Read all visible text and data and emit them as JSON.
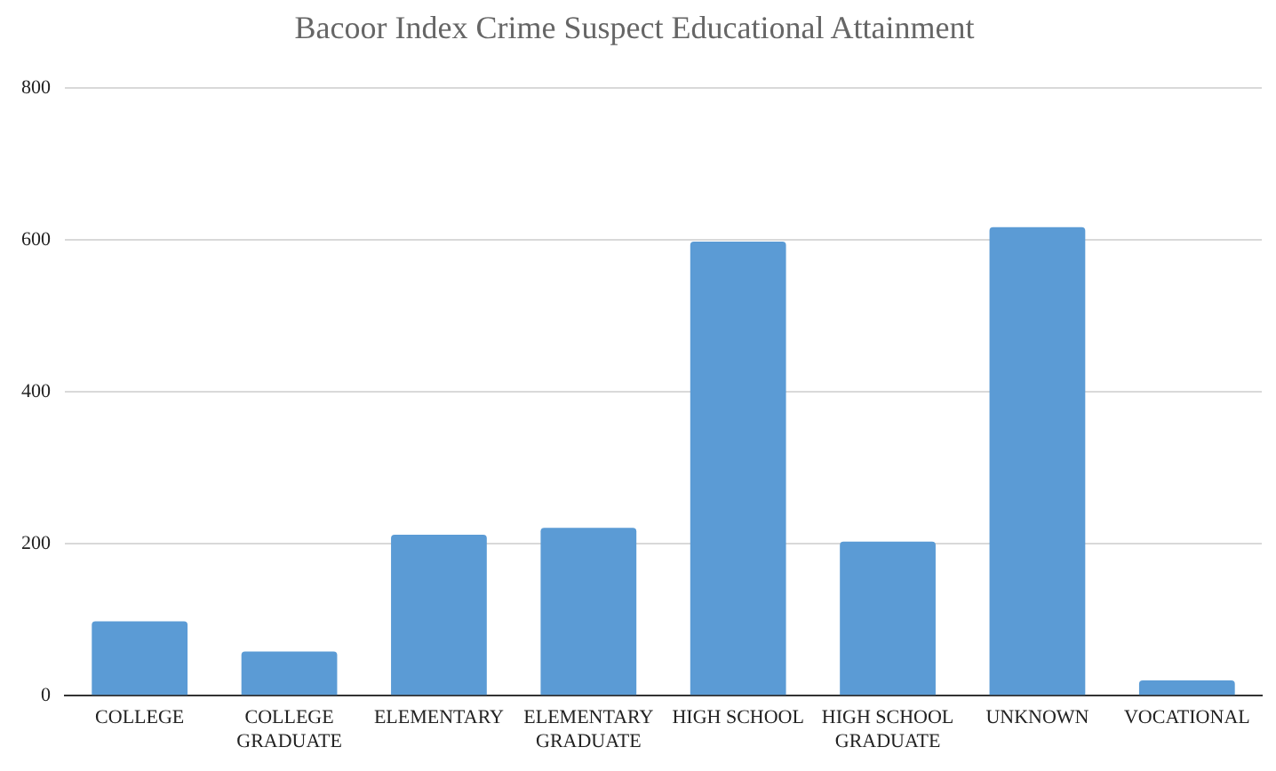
{
  "chart_data": {
    "type": "bar",
    "title": "Bacoor Index Crime Suspect Educational Attainment",
    "categories": [
      "COLLEGE",
      "COLLEGE GRADUATE",
      "ELEMENTARY",
      "ELEMENTARY GRADUATE",
      "HIGH SCHOOL",
      "HIGH SCHOOL GRADUATE",
      "UNKNOWN",
      "VOCATIONAL"
    ],
    "values": [
      98,
      58,
      212,
      221,
      598,
      203,
      617,
      20
    ],
    "color": "#5b9bd5",
    "ylim": [
      0,
      800
    ],
    "yticks": [
      0,
      200,
      400,
      600,
      800
    ],
    "grid": "y",
    "legend": false
  }
}
